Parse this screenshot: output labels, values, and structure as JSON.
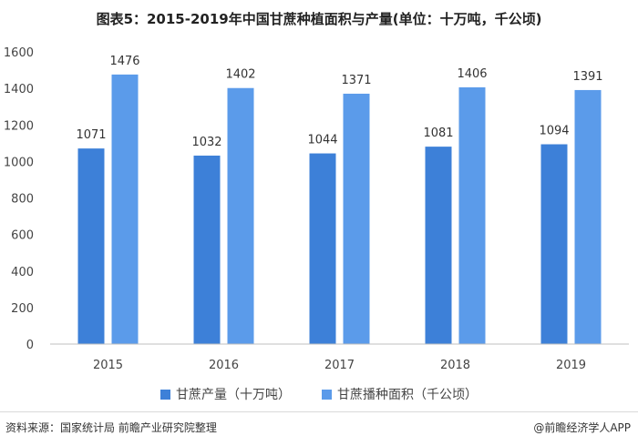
{
  "title": "图表5：2015-2019年中国甘蔗种植面积与产量(单位：十万吨，千公顷)",
  "chart_data": {
    "type": "bar",
    "categories": [
      "2015",
      "2016",
      "2017",
      "2018",
      "2019"
    ],
    "series": [
      {
        "name": "甘蔗产量（十万吨）",
        "values": [
          1071,
          1032,
          1044,
          1081,
          1094
        ],
        "color": "#3d80d8"
      },
      {
        "name": "甘蔗播种面积（千公顷）",
        "values": [
          1476,
          1402,
          1371,
          1406,
          1391
        ],
        "color": "#5b9bea"
      }
    ],
    "ylim": [
      0,
      1600
    ],
    "yticks": [
      0,
      200,
      400,
      600,
      800,
      1000,
      1200,
      1400,
      1600
    ],
    "grid": false,
    "legend": "bottom"
  },
  "source": "资料来源：国家统计局 前瞻产业研究院整理",
  "brand": "@前瞻经济学人APP"
}
